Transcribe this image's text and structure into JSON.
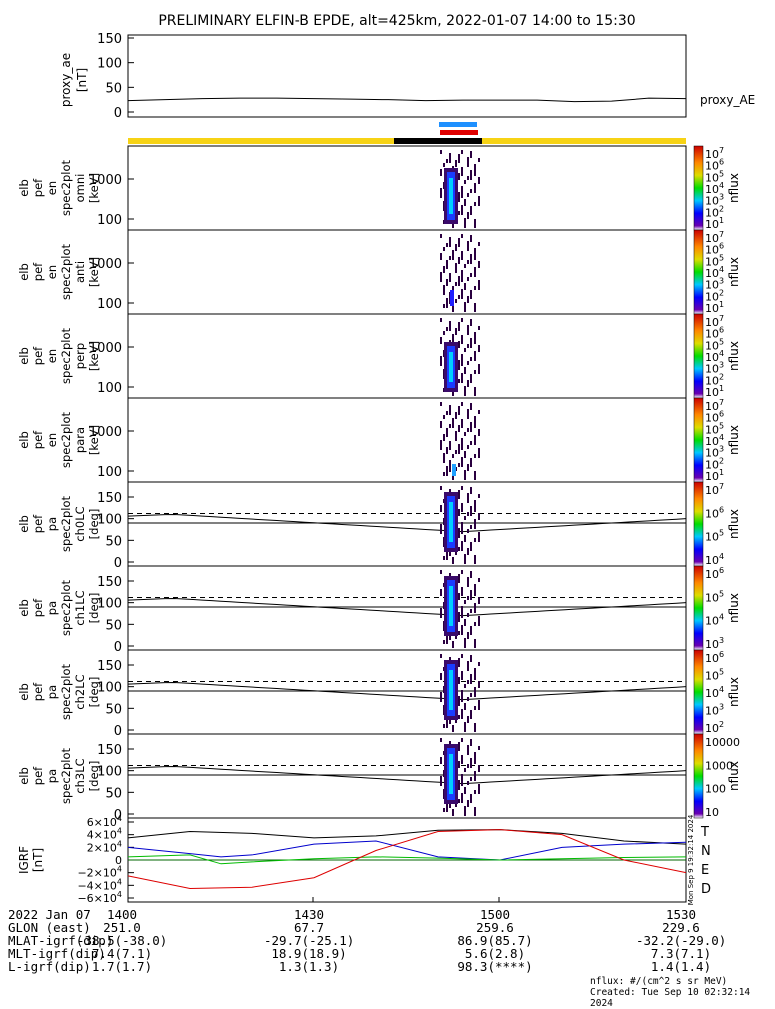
{
  "title": "PRELIMINARY ELFIN-B EPDE, alt=425km, 2022-01-07 14:00 to 15:30",
  "chart_data": [
    {
      "type": "line",
      "panel": "proxy_ae",
      "ylabel": [
        "proxy_ae",
        "[nT]"
      ],
      "yticks": [
        "150",
        "100",
        "50",
        "0"
      ],
      "ylim": [
        0,
        150
      ],
      "series": [
        {
          "name": "proxy_AE",
          "x": [
            "14:00",
            "14:06",
            "14:12",
            "14:18",
            "14:24",
            "14:30",
            "14:36",
            "14:42",
            "14:48",
            "14:54",
            "15:00",
            "15:06",
            "15:12",
            "15:18",
            "15:24",
            "15:30"
          ],
          "values": [
            23,
            25,
            27,
            28,
            28,
            27,
            26,
            25,
            23,
            24,
            24,
            24,
            21,
            22,
            28,
            27
          ]
        }
      ]
    },
    {
      "type": "heatmap",
      "panel": "omni",
      "ylabel": [
        "elb",
        "pef",
        "en",
        "spec2plot",
        "omni",
        "[keV]"
      ],
      "yticks": [
        "1000",
        "100"
      ],
      "colorbar": {
        "label": "nflux",
        "ticks": [
          "10^7",
          "10^6",
          "10^5",
          "10^4",
          "10^3",
          "10^2",
          "10^1"
        ],
        "scale": "log"
      }
    },
    {
      "type": "heatmap",
      "panel": "anti",
      "ylabel": [
        "elb",
        "pef",
        "en",
        "spec2plot",
        "anti",
        "[keV]"
      ],
      "yticks": [
        "1000",
        "100"
      ],
      "colorbar": {
        "label": "nflux",
        "ticks": [
          "10^7",
          "10^6",
          "10^5",
          "10^4",
          "10^3",
          "10^2",
          "10^1"
        ],
        "scale": "log"
      }
    },
    {
      "type": "heatmap",
      "panel": "perp",
      "ylabel": [
        "elb",
        "pef",
        "en",
        "spec2plot",
        "perp",
        "[keV]"
      ],
      "yticks": [
        "1000",
        "100"
      ],
      "colorbar": {
        "label": "nflux",
        "ticks": [
          "10^7",
          "10^6",
          "10^5",
          "10^4",
          "10^3",
          "10^2",
          "10^1"
        ],
        "scale": "log"
      }
    },
    {
      "type": "heatmap",
      "panel": "para",
      "ylabel": [
        "elb",
        "pef",
        "en",
        "spec2plot",
        "para",
        "[keV]"
      ],
      "yticks": [
        "1000",
        "100"
      ],
      "colorbar": {
        "label": "nflux",
        "ticks": [
          "10^7",
          "10^6",
          "10^5",
          "10^4",
          "10^3",
          "10^2",
          "10^1"
        ],
        "scale": "log"
      }
    },
    {
      "type": "heatmap",
      "panel": "ch0LC",
      "ylabel": [
        "elb",
        "pef",
        "pa",
        "spec2plot",
        "ch0LC",
        "[deg]"
      ],
      "yticks": [
        "150",
        "100",
        "50",
        "0"
      ],
      "ylim": [
        0,
        180
      ],
      "colorbar": {
        "label": "nflux",
        "ticks": [
          "10^7",
          "10^6",
          "10^5",
          "10^4"
        ],
        "scale": "log"
      }
    },
    {
      "type": "heatmap",
      "panel": "ch1LC",
      "ylabel": [
        "elb",
        "pef",
        "pa",
        "spec2plot",
        "ch1LC",
        "[deg]"
      ],
      "yticks": [
        "150",
        "100",
        "50",
        "0"
      ],
      "ylim": [
        0,
        180
      ],
      "colorbar": {
        "label": "nflux",
        "ticks": [
          "10^6",
          "10^5",
          "10^4",
          "10^3"
        ],
        "scale": "log"
      }
    },
    {
      "type": "heatmap",
      "panel": "ch2LC",
      "ylabel": [
        "elb",
        "pef",
        "pa",
        "spec2plot",
        "ch2LC",
        "[deg]"
      ],
      "yticks": [
        "150",
        "100",
        "50",
        "0"
      ],
      "ylim": [
        0,
        180
      ],
      "colorbar": {
        "label": "nflux",
        "ticks": [
          "10^6",
          "10^5",
          "10^4",
          "10^3",
          "10^2"
        ],
        "scale": "log"
      }
    },
    {
      "type": "heatmap",
      "panel": "ch3LC",
      "ylabel": [
        "elb",
        "pef",
        "pa",
        "spec2plot",
        "ch3LC",
        "[deg]"
      ],
      "yticks": [
        "150",
        "100",
        "50",
        "0"
      ],
      "ylim": [
        0,
        180
      ],
      "colorbar": {
        "label": "nflux",
        "ticks": [
          "10000",
          "1000",
          "100",
          "10"
        ],
        "scale": "log"
      }
    },
    {
      "type": "line",
      "panel": "IGRF",
      "ylabel": [
        "IGRF",
        "[nT]"
      ],
      "yticks": [
        "6×10^4",
        "4×10^4",
        "2×10^4",
        "0",
        "−2×10^4",
        "−4×10^4",
        "−6×10^4"
      ],
      "ylim": [
        -60000,
        60000
      ],
      "legend": [
        "T",
        "N",
        "E",
        "D"
      ],
      "series": [
        {
          "name": "T",
          "x": [
            0,
            10,
            20,
            30,
            40,
            50,
            60,
            70,
            80,
            90
          ],
          "values": [
            35000,
            45000,
            42000,
            35000,
            38000,
            47000,
            48000,
            42000,
            30000,
            25000
          ]
        },
        {
          "name": "N",
          "x": [
            0,
            10,
            15,
            20,
            30,
            40,
            50,
            60,
            70,
            80,
            90
          ],
          "values": [
            20000,
            10000,
            5000,
            8000,
            25000,
            30000,
            5000,
            0,
            20000,
            25000,
            28000
          ]
        },
        {
          "name": "E",
          "x": [
            0,
            10,
            15,
            20,
            30,
            40,
            50,
            60,
            70,
            80,
            90
          ],
          "values": [
            5000,
            8000,
            -6000,
            -3000,
            2000,
            5000,
            3000,
            0,
            2000,
            4000,
            5000
          ]
        },
        {
          "name": "D",
          "x": [
            0,
            10,
            20,
            30,
            40,
            50,
            60,
            70,
            80,
            90
          ],
          "values": [
            -25000,
            -45000,
            -43000,
            -28000,
            15000,
            45000,
            48000,
            40000,
            0,
            -20000
          ]
        }
      ]
    }
  ],
  "x_axis": {
    "ticks": [
      "1400",
      "1430",
      "1500",
      "1530"
    ]
  },
  "footer": {
    "rows": [
      {
        "label": "2022 Jan 07",
        "values": [
          "1400",
          "1430",
          "1500",
          "1530"
        ]
      },
      {
        "label": "GLON (east)",
        "values": [
          "251.0",
          "67.7",
          "259.6",
          "229.6"
        ]
      },
      {
        "label": "MLAT-igrf(dip)",
        "values": [
          "-38.5(-38.0)",
          "-29.7(-25.1)",
          "86.9(85.7)",
          "-32.2(-29.0)"
        ]
      },
      {
        "label": "MLT-igrf(dip)",
        "values": [
          "7.4(7.1)",
          "18.9(18.9)",
          "5.6(2.8)",
          "7.3(7.1)"
        ]
      },
      {
        "label": "L-igrf(dip)",
        "values": [
          "1.7(1.7)",
          "1.3(1.3)",
          "98.3(****)",
          "1.4(1.4)"
        ]
      }
    ]
  },
  "units_note": "nflux: #/(cm^2 s sr MeV)",
  "created": "Created: Tue Sep 10 02:32:14 2024",
  "side_stamp": "Mon Sep  9 19:32:14 2024",
  "colors": {
    "yellow_bar": "#f7d315",
    "black_bar": "#000000",
    "blue_bar": "#1e90ff",
    "red_bar": "#e00000",
    "T": "#000000",
    "N": "#0000cc",
    "E": "#00bb00",
    "D": "#dd0000"
  }
}
